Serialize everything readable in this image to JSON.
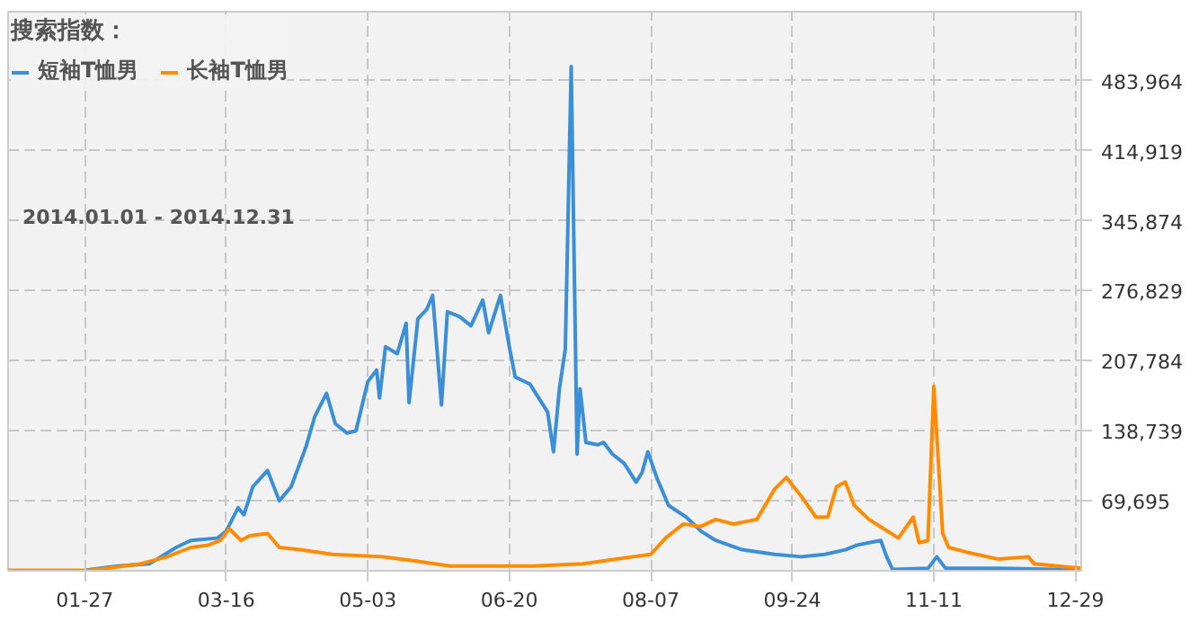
{
  "chart_data": {
    "type": "line",
    "legend_title": "搜索指数：",
    "annotations": [
      "2014.01.01 - 2014.12.31"
    ],
    "xlim": [
      "2014-01-01",
      "2014-12-31"
    ],
    "xticks": [
      {
        "value": "2014-01-27",
        "label": "01-27"
      },
      {
        "value": "2014-03-16",
        "label": "03-16"
      },
      {
        "value": "2014-05-03",
        "label": "05-03"
      },
      {
        "value": "2014-06-20",
        "label": "06-20"
      },
      {
        "value": "2014-08-07",
        "label": "08-07"
      },
      {
        "value": "2014-09-24",
        "label": "09-24"
      },
      {
        "value": "2014-11-11",
        "label": "11-11"
      },
      {
        "value": "2014-12-29",
        "label": "12-29"
      }
    ],
    "ylim": [
      650,
      552000
    ],
    "yticks": [
      {
        "value": 69695,
        "label": "69,695"
      },
      {
        "value": 138739,
        "label": "138,739"
      },
      {
        "value": 207784,
        "label": "207,784"
      },
      {
        "value": 276829,
        "label": "276,829"
      },
      {
        "value": 345874,
        "label": "345,874"
      },
      {
        "value": 414919,
        "label": "414,919"
      },
      {
        "value": 483964,
        "label": "483,964"
      }
    ],
    "grid": true,
    "legend": "top left",
    "marker": "none",
    "line_style": "solid",
    "series": [
      {
        "name": "短袖T恤男",
        "color": "#3a8fd6",
        "x": [
          "2014-01-27",
          "2014-02-07",
          "2014-02-18",
          "2014-02-27",
          "2014-03-04",
          "2014-03-13",
          "2014-03-16",
          "2014-03-20",
          "2014-03-22",
          "2014-03-25",
          "2014-03-30",
          "2014-04-03",
          "2014-04-07",
          "2014-04-12",
          "2014-04-15",
          "2014-04-19",
          "2014-04-22",
          "2014-04-26",
          "2014-04-29",
          "2014-05-03",
          "2014-05-06",
          "2014-05-07",
          "2014-05-09",
          "2014-05-13",
          "2014-05-16",
          "2014-05-17",
          "2014-05-20",
          "2014-05-23",
          "2014-05-25",
          "2014-05-28",
          "2014-05-30",
          "2014-06-03",
          "2014-06-07",
          "2014-06-11",
          "2014-06-13",
          "2014-06-17",
          "2014-06-20",
          "2014-06-22",
          "2014-06-27",
          "2014-06-30",
          "2014-07-03",
          "2014-07-05",
          "2014-07-07",
          "2014-07-09",
          "2014-07-11",
          "2014-07-13",
          "2014-07-14",
          "2014-07-16",
          "2014-07-20",
          "2014-07-22",
          "2014-07-25",
          "2014-07-29",
          "2014-08-02",
          "2014-08-04",
          "2014-08-06",
          "2014-08-09",
          "2014-08-13",
          "2014-08-19",
          "2014-08-24",
          "2014-08-29",
          "2014-09-07",
          "2014-09-18",
          "2014-09-27",
          "2014-10-05",
          "2014-10-12",
          "2014-10-16",
          "2014-10-20",
          "2014-10-24",
          "2014-10-26",
          "2014-10-28",
          "2014-11-09",
          "2014-11-12",
          "2014-11-15",
          "2014-12-03",
          "2014-12-31"
        ],
        "values": [
          1000,
          5300,
          7600,
          23700,
          30600,
          32900,
          39800,
          62800,
          55900,
          83500,
          99600,
          69700,
          83500,
          122600,
          152500,
          175600,
          145600,
          136400,
          138700,
          187100,
          198600,
          171000,
          221600,
          214700,
          244600,
          166400,
          249200,
          258400,
          272200,
          164100,
          256100,
          251500,
          242300,
          267600,
          235400,
          272200,
          221600,
          191700,
          184800,
          171000,
          157200,
          118000,
          180200,
          219300,
          498000,
          115700,
          180200,
          127200,
          124900,
          127200,
          115700,
          106500,
          88100,
          97300,
          118000,
          92700,
          65100,
          53600,
          39800,
          30600,
          21400,
          16800,
          14500,
          16800,
          21400,
          26000,
          28300,
          30600,
          14500,
          2000,
          3000,
          14500,
          3000,
          3000,
          1500
        ]
      },
      {
        "name": "长袖T恤男",
        "color": "#ff8c00",
        "x": [
          "2014-01-01",
          "2014-01-29",
          "2014-02-15",
          "2014-02-24",
          "2014-03-04",
          "2014-03-10",
          "2014-03-14",
          "2014-03-17",
          "2014-03-21",
          "2014-03-24",
          "2014-03-30",
          "2014-04-03",
          "2014-04-10",
          "2014-04-21",
          "2014-05-08",
          "2014-05-20",
          "2014-05-31",
          "2014-06-17",
          "2014-06-28",
          "2014-07-15",
          "2014-08-01",
          "2014-08-07",
          "2014-08-12",
          "2014-08-18",
          "2014-08-24",
          "2014-08-29",
          "2014-09-04",
          "2014-09-12",
          "2014-09-18",
          "2014-09-22",
          "2014-09-27",
          "2014-10-02",
          "2014-10-06",
          "2014-10-09",
          "2014-10-12",
          "2014-10-15",
          "2014-10-20",
          "2014-10-25",
          "2014-10-30",
          "2014-11-04",
          "2014-11-06",
          "2014-11-09",
          "2014-11-11",
          "2014-11-14",
          "2014-11-16",
          "2014-11-22",
          "2014-12-03",
          "2014-12-13",
          "2014-12-15",
          "2014-12-31"
        ],
        "values": [
          1000,
          1000,
          7600,
          14500,
          23700,
          26000,
          30600,
          42100,
          30600,
          35200,
          37500,
          23700,
          21400,
          16800,
          14500,
          9900,
          5300,
          5300,
          5300,
          7600,
          14500,
          16800,
          32900,
          46700,
          44400,
          51300,
          46700,
          51300,
          81200,
          92700,
          74300,
          53600,
          53600,
          83500,
          88100,
          65100,
          51300,
          42100,
          32900,
          53600,
          28300,
          30600,
          182500,
          37500,
          23700,
          19100,
          12100,
          14500,
          7600,
          3000
        ]
      }
    ]
  }
}
